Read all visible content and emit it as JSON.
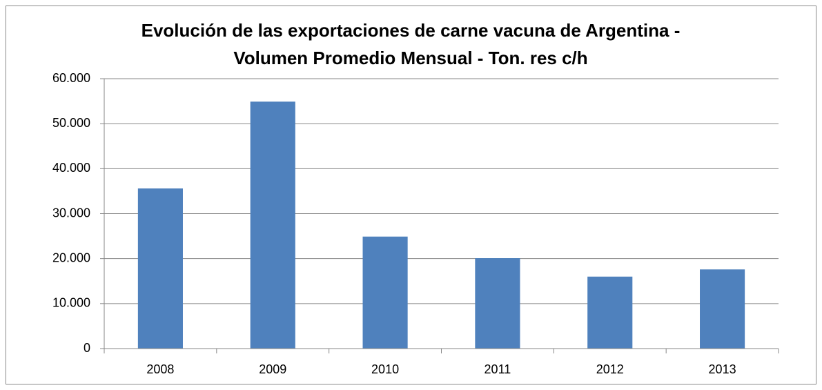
{
  "chart_data": {
    "type": "bar",
    "title": [
      "Evolución de las exportaciones de carne vacuna de Argentina -",
      "Volumen Promedio Mensual - Ton. res c/h"
    ],
    "categories": [
      "2008",
      "2009",
      "2010",
      "2011",
      "2012",
      "2013"
    ],
    "values": [
      35600,
      54900,
      24900,
      20100,
      16000,
      17600
    ],
    "color": "#4f81bd",
    "ylim": [
      0,
      60000
    ],
    "yticks": [
      0,
      {
        "value": 10000,
        "label": "10.000"
      },
      {
        "value": 20000,
        "label": "20.000"
      },
      {
        "value": 30000,
        "label": "30.000"
      },
      {
        "value": 40000,
        "label": "40.000"
      },
      {
        "value": 50000,
        "label": "50.000"
      },
      {
        "value": 60000,
        "label": "60.000"
      }
    ],
    "grid": true
  }
}
